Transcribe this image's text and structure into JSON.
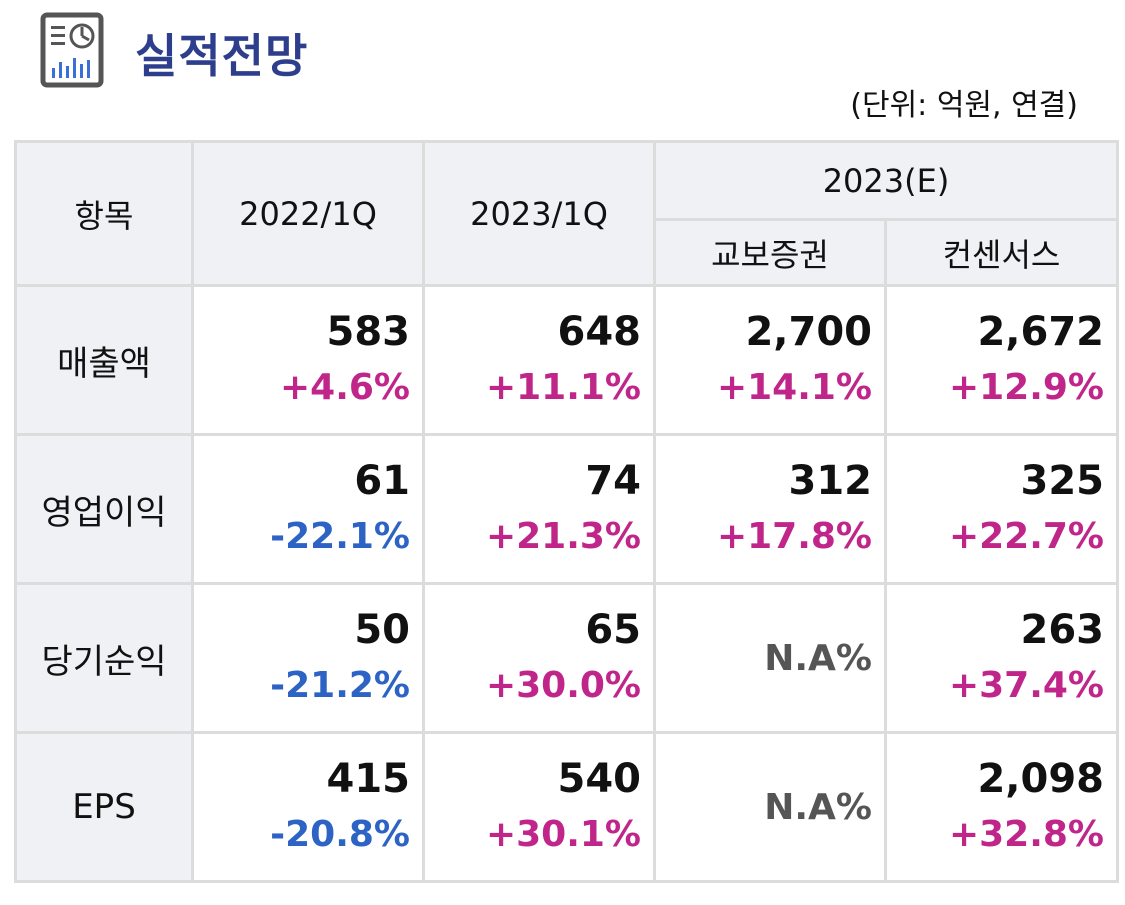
{
  "header": {
    "title": "실적전망",
    "unit_note": "(단위: 억원, 연결)",
    "icon": "report-chart-icon",
    "accent_color": "#2c3e8c"
  },
  "table": {
    "col_item": "항목",
    "col_q1_2022": "2022/1Q",
    "col_q1_2023": "2023/1Q",
    "col_2023e": "2023(E)",
    "col_kyobo": "교보증권",
    "col_consensus": "컨센서스",
    "rows": [
      {
        "label": "매출액",
        "q1_2022": {
          "value": "583",
          "change": "+4.6%"
        },
        "q1_2023": {
          "value": "648",
          "change": "+11.1%"
        },
        "kyobo": {
          "value": "2,700",
          "change": "+14.1%"
        },
        "consensus": {
          "value": "2,672",
          "change": "+12.9%"
        }
      },
      {
        "label": "영업이익",
        "q1_2022": {
          "value": "61",
          "change": "-22.1%"
        },
        "q1_2023": {
          "value": "74",
          "change": "+21.3%"
        },
        "kyobo": {
          "value": "312",
          "change": "+17.8%"
        },
        "consensus": {
          "value": "325",
          "change": "+22.7%"
        }
      },
      {
        "label": "당기순익",
        "q1_2022": {
          "value": "50",
          "change": "-21.2%"
        },
        "q1_2023": {
          "value": "65",
          "change": "+30.0%"
        },
        "kyobo": {
          "na": "N.A%"
        },
        "consensus": {
          "value": "263",
          "change": "+37.4%"
        }
      },
      {
        "label": "EPS",
        "q1_2022": {
          "value": "415",
          "change": "-20.8%"
        },
        "q1_2023": {
          "value": "540",
          "change": "+30.1%"
        },
        "kyobo": {
          "na": "N.A%"
        },
        "consensus": {
          "value": "2,098",
          "change": "+32.8%"
        }
      }
    ],
    "positive_color": "#c0268a",
    "negative_color": "#2c63c4"
  }
}
